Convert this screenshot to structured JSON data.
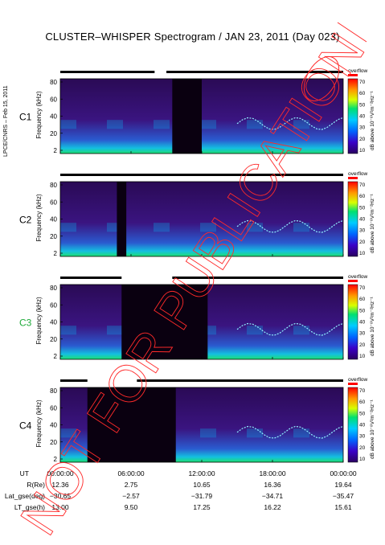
{
  "title": "CLUSTER–WHISPER Spectrogram / JAN 23, 2011 (Day 023)",
  "side_label": "LPCE/CNRS – Feb 15, 2011",
  "watermark": "NOT FOR PUBLICATION",
  "colorbar": {
    "label": "dB above 10⁻⁸V²m⁻²Hz⁻¹",
    "overflow_label": "overflow",
    "ticks": [
      "70",
      "60",
      "50",
      "40",
      "30",
      "20",
      "10"
    ]
  },
  "ephemeris": {
    "rows": [
      {
        "label": "UT",
        "values": [
          "00:00:00",
          "06:00:00",
          "12:00:00",
          "18:00:00",
          "00:00:00"
        ]
      },
      {
        "label": "R(Re)",
        "values": [
          "12.36",
          "2.75",
          "10.65",
          "16.36",
          "19.64"
        ]
      },
      {
        "label": "Lat_gse(deg)",
        "values": [
          "−30.65",
          "−2.57",
          "−31.79",
          "−34.71",
          "−35.47"
        ]
      },
      {
        "label": "LT_gse(h)",
        "values": [
          "13.00",
          "9.50",
          "17.25",
          "16.22",
          "15.61"
        ]
      }
    ]
  },
  "colors": {
    "background": "#ffffff",
    "plot_dark": "#1c0030",
    "plot_mid": "#4b1890",
    "watermark": "#ff2a2a",
    "c3_label": "#1faa3a"
  },
  "chart_data": {
    "type": "heatmap",
    "xlabel": "UT",
    "ylabel": "Frequency (kHz)",
    "ylim": [
      2,
      80
    ],
    "yticks": [
      "80",
      "60",
      "40",
      "20",
      "2"
    ],
    "xlim": [
      "00:00:00",
      "24:00:00"
    ],
    "panels": [
      {
        "name": "C1",
        "no_data": [
          [
            9.5,
            12.0
          ]
        ],
        "coverage": [
          [
            0.0,
            8.0
          ],
          [
            9.0,
            24.0
          ]
        ]
      },
      {
        "name": "C2",
        "no_data": [
          [
            4.8,
            5.6
          ]
        ],
        "coverage": [
          [
            0.0,
            24.0
          ]
        ]
      },
      {
        "name": "C3",
        "no_data": [
          [
            5.2,
            12.5
          ]
        ],
        "coverage": [
          [
            0.0,
            5.2
          ],
          [
            9.5,
            24.0
          ]
        ]
      },
      {
        "name": "C4",
        "no_data": [
          [
            2.3,
            9.8
          ]
        ],
        "coverage": [
          [
            0.0,
            2.3
          ],
          [
            6.5,
            24.0
          ]
        ]
      }
    ]
  }
}
